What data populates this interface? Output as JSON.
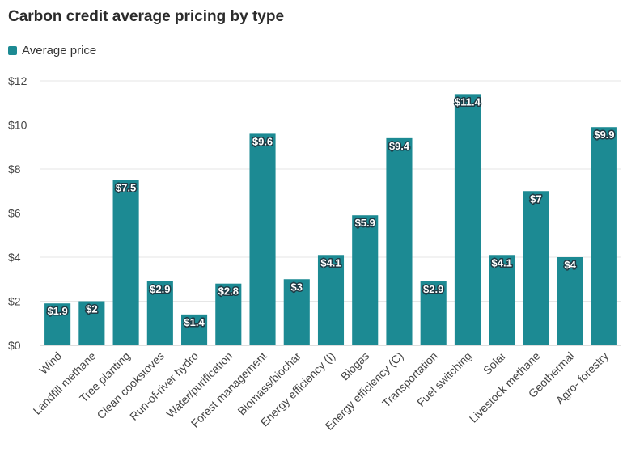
{
  "header": {
    "title": "Carbon credit average pricing by type"
  },
  "legend": {
    "label": "Average price"
  },
  "colors": {
    "bar": "#1c8a93",
    "grid": "#e6e6e6",
    "axis_text": "#444444",
    "label_text": "#ffffff"
  },
  "chart_data": {
    "type": "bar",
    "title": "Carbon credit average pricing by type",
    "xlabel": "",
    "ylabel": "",
    "ylim": [
      0,
      12
    ],
    "yticks": [
      0,
      2,
      4,
      6,
      8,
      10,
      12
    ],
    "ytick_labels": [
      "$0",
      "$2",
      "$4",
      "$6",
      "$8",
      "$10",
      "$12"
    ],
    "grid": true,
    "legend_position": "top-left",
    "categories": [
      "Wind",
      "Landfill methane",
      "Tree planting",
      "Clean cookstoves",
      "Run-of-river hydro",
      "Water/purification",
      "Forest management",
      "Biomass/biochar",
      "Energy efficiency (I)",
      "Biogas",
      "Energy efficiency (C)",
      "Transportation",
      "Fuel switching",
      "Solar",
      "Livestock methane",
      "Geothermal",
      "Agro- forestry"
    ],
    "series": [
      {
        "name": "Average price",
        "values": [
          1.9,
          2,
          7.5,
          2.9,
          1.4,
          2.8,
          9.6,
          3,
          4.1,
          5.9,
          9.4,
          2.9,
          11.4,
          4.1,
          7,
          4,
          9.9
        ],
        "labels": [
          "$1.9",
          "$2",
          "$7.5",
          "$2.9",
          "$1.4",
          "$2.8",
          "$9.6",
          "$3",
          "$4.1",
          "$5.9",
          "$9.4",
          "$2.9",
          "$11.4",
          "$4.1",
          "$7",
          "$4",
          "$9.9"
        ]
      }
    ]
  }
}
